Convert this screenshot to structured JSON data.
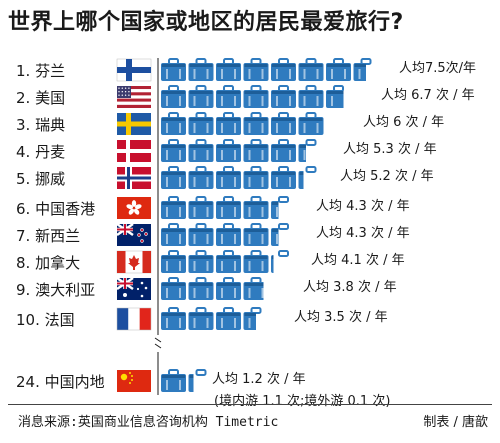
{
  "title": "世界上哪个国家或地区的居民最爱旅行?",
  "source": "消息来源:英国商业信息咨询机构 Timetric",
  "credit": "制表 / 唐歆",
  "colors": {
    "suitcase": "#2f7bbf",
    "suitcase_dark": "#1d5e99",
    "text": "#1a1a1a"
  },
  "chart_data": {
    "type": "bar",
    "title": "世界上哪个国家或地区的居民最爱旅行?",
    "unit_glyph": "suitcase",
    "categories": [
      "1. 芬兰",
      "2. 美国",
      "3. 瑞典",
      "4. 丹麦",
      "5. 挪威",
      "6. 中国香港",
      "7. 新西兰",
      "8. 加拿大",
      "9. 澳大利亚",
      "10. 法国",
      "24. 中国内地"
    ],
    "flags": [
      "finland-flag",
      "usa-flag",
      "sweden-flag",
      "denmark-flag",
      "norway-flag",
      "hongkong-flag",
      "newzealand-flag",
      "canada-flag",
      "australia-flag",
      "france-flag",
      "china-flag"
    ],
    "values": [
      7.5,
      6.7,
      6,
      5.3,
      5.2,
      4.3,
      4.3,
      4.1,
      3.8,
      3.5,
      1.2
    ],
    "value_labels": [
      "人均7.5次/年",
      "人均 6.7 次 / 年",
      "人均 6 次 / 年",
      "人均 5.3 次 / 年",
      "人均 5.2 次 / 年",
      "人均 4.3 次 / 年",
      "人均 4.3 次 / 年",
      "人均 4.1 次 / 年",
      "人均 3.8 次 / 年",
      "人均 3.5 次 / 年",
      "人均 1.2 次 / 年"
    ],
    "notes": {
      "10": "(境内游 1.1 次;境外游 0.1 次)"
    },
    "axis_break_after": 9
  }
}
